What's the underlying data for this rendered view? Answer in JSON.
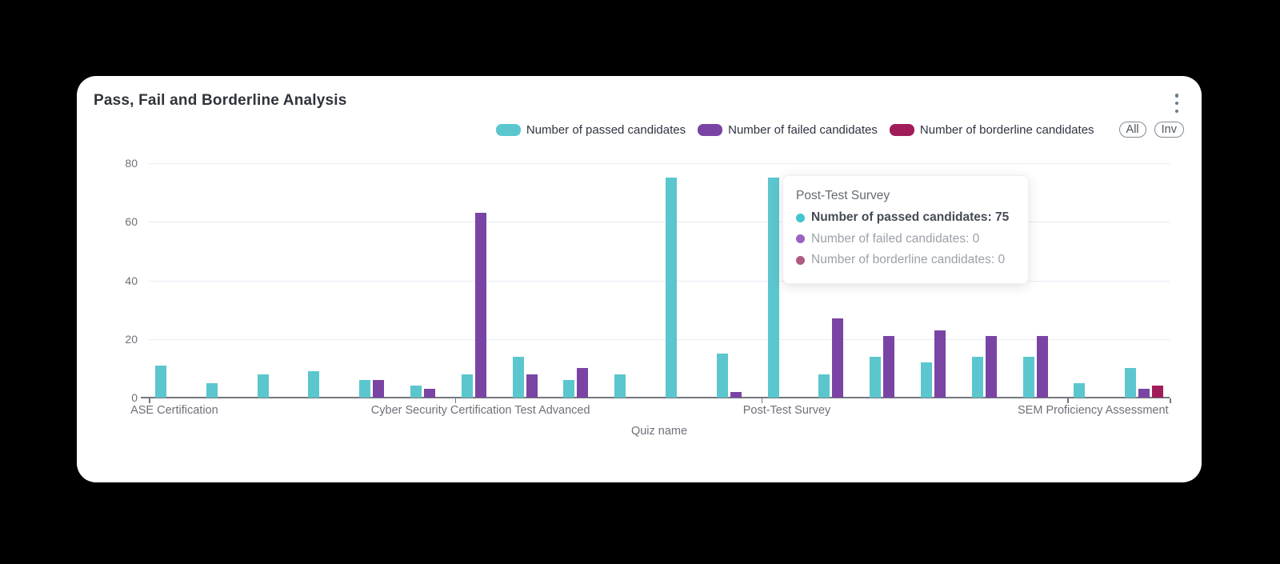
{
  "page": {
    "background_color": "#000000"
  },
  "card": {
    "title": "Pass, Fail and Borderline Analysis",
    "menu_icon": "kebab-vertical"
  },
  "legend": {
    "items": [
      {
        "label": "Number of passed candidates",
        "color": "#5bc6cd"
      },
      {
        "label": "Number of failed candidates",
        "color": "#7a44a4"
      },
      {
        "label": "Number of borderline candidates",
        "color": "#a11d5a"
      }
    ],
    "buttons": [
      {
        "label": "All"
      },
      {
        "label": "Inv"
      }
    ]
  },
  "tooltip": {
    "title": "Post-Test Survey",
    "rows": [
      {
        "text": "Number of passed candidates: 75",
        "value": 75,
        "color": "#41c5ce",
        "emphasis": true
      },
      {
        "text": "Number of failed candidates: 0",
        "value": 0,
        "color": "#9a63c2",
        "emphasis": false
      },
      {
        "text": "Number of borderline candidates: 0",
        "value": 0,
        "color": "#b05a80",
        "emphasis": false
      }
    ]
  },
  "chart_data": {
    "type": "bar",
    "title": "Pass, Fail and Borderline Analysis",
    "xlabel": "Quiz name",
    "ylabel": "",
    "ylim": [
      0,
      80
    ],
    "yticks": [
      0,
      20,
      40,
      60,
      80
    ],
    "grid": true,
    "legend_position": "top-right",
    "x_label_interval": 6,
    "categories": [
      "ASE Certification",
      "",
      "",
      "",
      "",
      "",
      "Cyber Security Certification Test Advanced",
      "",
      "",
      "",
      "",
      "",
      "Post-Test Survey",
      "",
      "",
      "",
      "",
      "",
      "SEM Proficiency Assessment",
      ""
    ],
    "series": [
      {
        "name": "Number of passed candidates",
        "color": "#5bc6cd",
        "values": [
          11,
          5,
          8,
          9,
          6,
          4,
          8,
          14,
          6,
          8,
          75,
          15,
          75,
          8,
          14,
          12,
          14,
          14,
          5,
          10
        ]
      },
      {
        "name": "Number of failed candidates",
        "color": "#7a44a4",
        "values": [
          0,
          0,
          0,
          0,
          6,
          3,
          63,
          8,
          10,
          0,
          0,
          2,
          0,
          27,
          21,
          23,
          21,
          21,
          0,
          3
        ]
      },
      {
        "name": "Number of borderline candidates",
        "color": "#a11d5a",
        "values": [
          0,
          0,
          0,
          0,
          0,
          0,
          0,
          0,
          0,
          0,
          0,
          0,
          0,
          0,
          0,
          0,
          0,
          0,
          0,
          4
        ]
      }
    ],
    "hovered_category": "Post-Test Survey"
  }
}
